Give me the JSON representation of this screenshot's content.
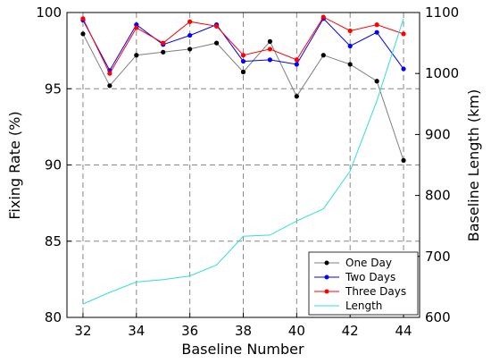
{
  "chart_data": {
    "type": "line",
    "xlabel": "Baseline Number",
    "ylabel_left": "Fixing Rate (%)",
    "ylabel_right": "Baseline Length (km)",
    "xlim": [
      31.4,
      44.6
    ],
    "ylim_left": [
      80,
      100
    ],
    "ylim_right": [
      600,
      1100
    ],
    "x_ticks": [
      32,
      34,
      36,
      38,
      40,
      42,
      44
    ],
    "y_ticks_left": [
      80,
      85,
      90,
      95,
      100
    ],
    "y_ticks_right": [
      600,
      700,
      800,
      900,
      1000,
      1100
    ],
    "grid": "dashed",
    "legend_position": "lower-right",
    "x": [
      32,
      33,
      34,
      35,
      36,
      37,
      38,
      39,
      40,
      41,
      42,
      43,
      44
    ],
    "series": [
      {
        "name": "One Day",
        "axis": "left",
        "color": "#000000",
        "line_color": "#7f7f7f",
        "marker": "dot",
        "values": [
          98.6,
          95.2,
          97.2,
          97.4,
          97.6,
          98.0,
          96.1,
          98.1,
          94.5,
          97.2,
          96.6,
          95.5,
          90.3
        ]
      },
      {
        "name": "Two Days",
        "axis": "left",
        "color": "#0000ff",
        "line_color": "#0000ff",
        "marker": "dot",
        "values": [
          99.5,
          96.2,
          99.2,
          97.9,
          98.5,
          99.2,
          96.8,
          96.9,
          96.6,
          99.6,
          97.8,
          98.7,
          96.3
        ]
      },
      {
        "name": "Three Days",
        "axis": "left",
        "color": "#ff0000",
        "line_color": "#ff0000",
        "marker": "dot",
        "values": [
          99.6,
          96.0,
          99.0,
          98.0,
          99.4,
          99.1,
          97.2,
          97.6,
          96.9,
          99.7,
          98.8,
          99.2,
          98.6
        ]
      },
      {
        "name": "Length",
        "axis": "right",
        "color": "#33dddd",
        "line_color": "#33dddd",
        "marker": "none",
        "values": [
          622,
          641,
          658,
          662,
          668,
          686,
          733,
          735,
          758,
          778,
          840,
          955,
          1090
        ]
      }
    ]
  }
}
